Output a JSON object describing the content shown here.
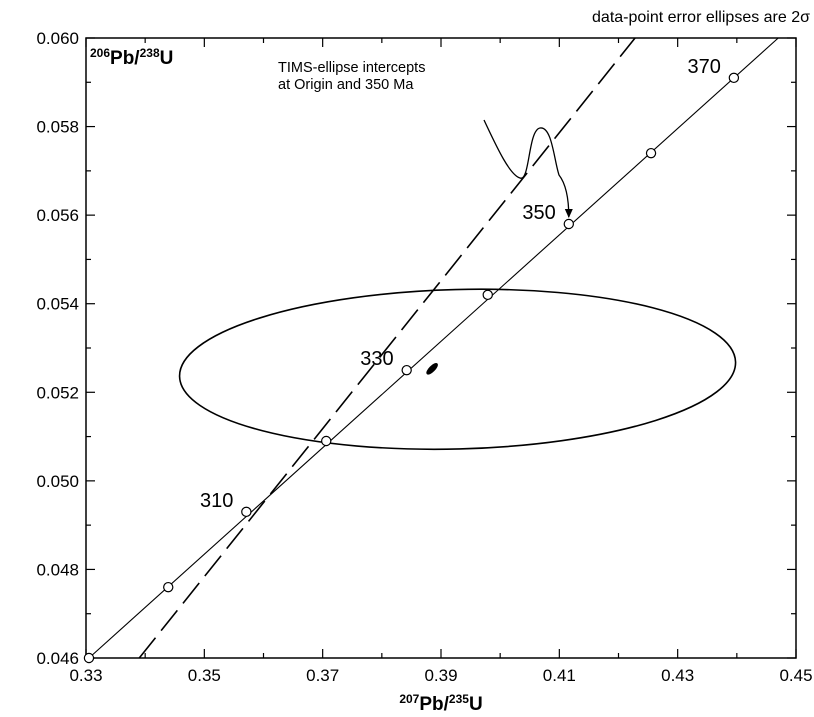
{
  "chart_data": {
    "type": "scatter",
    "note": "data-point error ellipses are 2σ",
    "xlabel": {
      "sup": "207",
      "main": "Pb/",
      "sup2": "235",
      "end": "U"
    },
    "ylabel": {
      "sup": "206",
      "main": "Pb/",
      "sup2": "238",
      "end": "U"
    },
    "xlim": [
      0.33,
      0.45
    ],
    "ylim": [
      0.046,
      0.06
    ],
    "xticks": [
      "0.33",
      "0.35",
      "0.37",
      "0.39",
      "0.41",
      "0.43",
      "0.45"
    ],
    "yticks": [
      "0.046",
      "0.048",
      "0.050",
      "0.052",
      "0.054",
      "0.056",
      "0.058",
      "0.060"
    ],
    "concordia": {
      "points": [
        {
          "x": 0.3305,
          "y": 0.046
        },
        {
          "x": 0.3439,
          "y": 0.0476
        },
        {
          "x": 0.3571,
          "y": 0.0493
        },
        {
          "x": 0.3706,
          "y": 0.0509
        },
        {
          "x": 0.3842,
          "y": 0.0525
        },
        {
          "x": 0.3979,
          "y": 0.0542
        },
        {
          "x": 0.4116,
          "y": 0.0558
        },
        {
          "x": 0.4255,
          "y": 0.0574
        },
        {
          "x": 0.4395,
          "y": 0.0591
        }
      ],
      "line_end": {
        "x": 0.447,
        "y": 0.06
      },
      "age_labels": [
        {
          "text": "310",
          "x": 0.3571,
          "y": 0.0493
        },
        {
          "text": "330",
          "x": 0.3842,
          "y": 0.0525
        },
        {
          "text": "350",
          "x": 0.4116,
          "y": 0.0558
        },
        {
          "text": "370",
          "x": 0.4395,
          "y": 0.0591
        }
      ]
    },
    "discordia": {
      "style": "dashed",
      "from": {
        "x": 0.339,
        "y": 0.046
      },
      "to": {
        "x": 0.4228,
        "y": 0.06
      }
    },
    "large_ellipse": {
      "cx": 0.3928,
      "cy": 0.05252,
      "rx": 0.047,
      "ry": 0.0018,
      "rotation_deg": -1.5
    },
    "small_ellipse": {
      "cx": 0.3885,
      "cy": 0.05253,
      "rx": 0.0011,
      "ry": 0.00013,
      "rotation_deg": -45
    },
    "annotation": {
      "line1": "TIMS-ellipse intercepts",
      "line2": "at Origin and 350 Ma",
      "target": {
        "x": 0.4116,
        "y": 0.0558
      }
    }
  }
}
